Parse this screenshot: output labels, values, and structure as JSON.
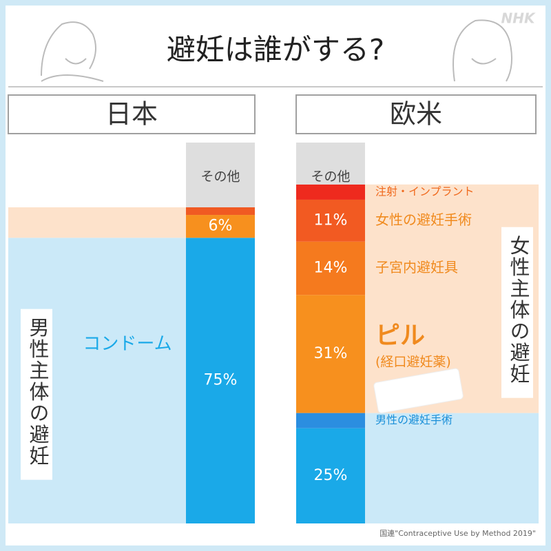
{
  "title": "避妊は誰がする?",
  "logo": "NHK",
  "source": "国連\"Contraceptive Use by Method 2019\"",
  "chart_data": {
    "type": "stacked-bar",
    "panels": [
      {
        "name": "日本",
        "group_label": "男性主体の避妊",
        "group_side": "male",
        "segments": [
          {
            "name": "コンドーム",
            "value": 75,
            "value_label": "75%",
            "color": "#1aa9e8",
            "side": "male",
            "name_color": "#1aa9e8"
          },
          {
            "value": 6,
            "value_label": "6%",
            "color": "#f7901e",
            "side": "female"
          },
          {
            "value": 2,
            "color": "#f05a22",
            "side": "female"
          },
          {
            "name": "その他",
            "value": 17,
            "color": "#dedede"
          }
        ]
      },
      {
        "name": "欧米",
        "group_label": "女性主体の避妊",
        "group_side": "female",
        "segments": [
          {
            "value": 25,
            "value_label": "25%",
            "color": "#1aa9e8",
            "side": "male"
          },
          {
            "name": "男性の避妊手術",
            "value": 4,
            "color": "#2b8ee0",
            "side": "male",
            "name_color": "#1a8fd8"
          },
          {
            "name": "ピル",
            "subname": "(経口避妊薬)",
            "value": 31,
            "value_label": "31%",
            "color": "#f7901e",
            "side": "female",
            "name_color": "#f08a1e"
          },
          {
            "name": "子宮内避妊具",
            "value": 14,
            "value_label": "14%",
            "color": "#f57a1e",
            "side": "female",
            "name_color": "#f08a1e"
          },
          {
            "name": "女性の避妊手術",
            "value": 11,
            "value_label": "11%",
            "color": "#f25a22",
            "side": "female",
            "name_color": "#f08a1e"
          },
          {
            "name": "注射・インプラント",
            "value": 4,
            "color": "#ee2a1e",
            "side": "female",
            "name_color": "#f06a1e"
          },
          {
            "name": "その他",
            "value": 11,
            "color": "#dedede"
          }
        ]
      }
    ]
  }
}
